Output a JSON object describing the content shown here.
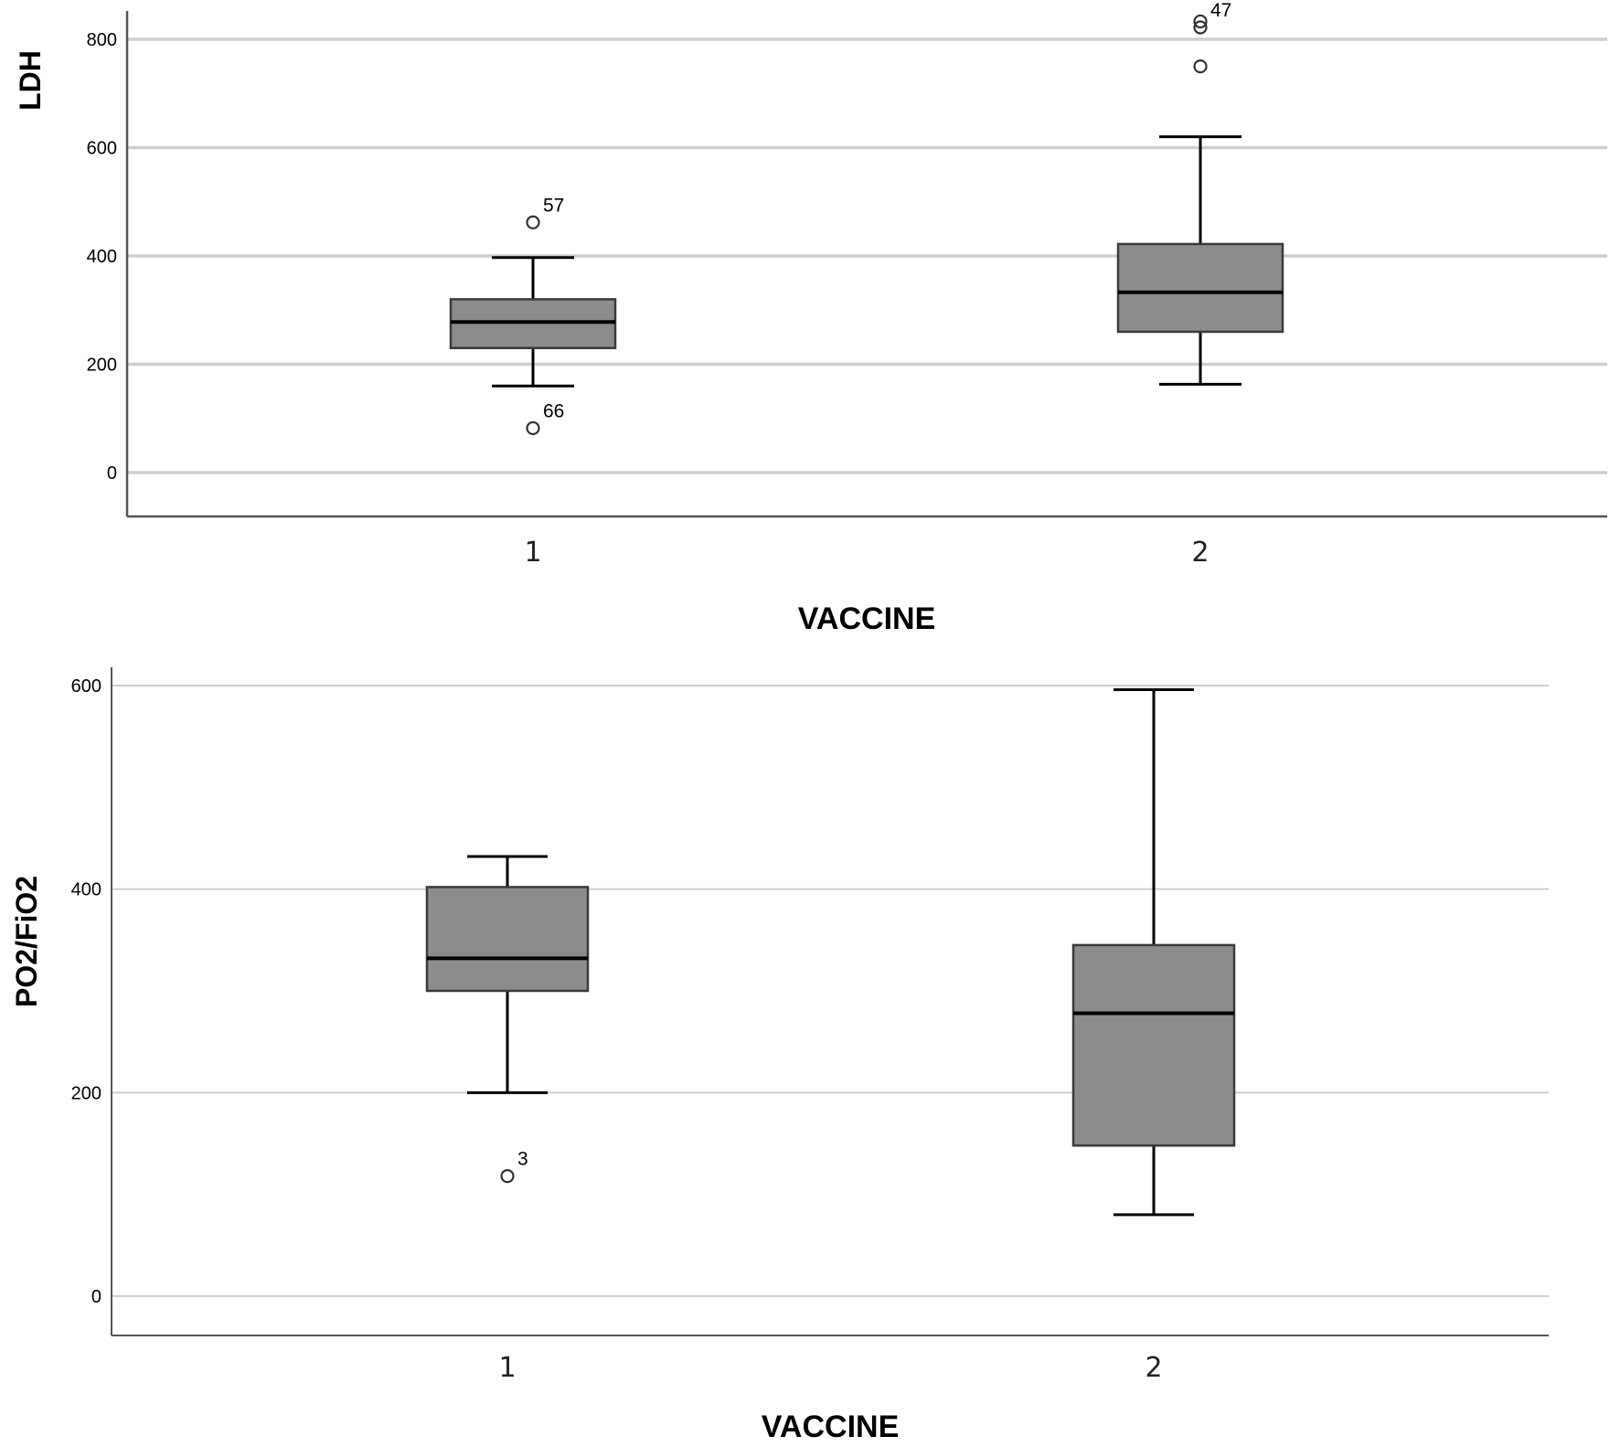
{
  "chart_data": [
    {
      "type": "boxplot",
      "xlabel": "VACCINE",
      "ylabel": "LDH",
      "ylim": [
        -80,
        850
      ],
      "yticks": [
        0,
        200,
        400,
        600,
        800
      ],
      "grid": true,
      "box_color": "#8c8c8c",
      "categories": [
        "1",
        "2"
      ],
      "boxes": [
        {
          "category": "1",
          "whisker_low": 160,
          "q1": 230,
          "median": 278,
          "q3": 320,
          "whisker_high": 397,
          "outliers": [
            {
              "value": 462,
              "label": "57"
            },
            {
              "value": 82,
              "label": "66"
            }
          ]
        },
        {
          "category": "2",
          "whisker_low": 163,
          "q1": 260,
          "median": 333,
          "q3": 422,
          "whisker_high": 620,
          "outliers": [
            {
              "value": 833,
              "label": ""
            },
            {
              "value": 822,
              "label": "47"
            },
            {
              "value": 750,
              "label": ""
            }
          ]
        }
      ]
    },
    {
      "type": "boxplot",
      "xlabel": "VACCINE",
      "ylabel": "PO2/FiO2",
      "ylim": [
        -38,
        600
      ],
      "yticks": [
        0,
        200,
        400,
        600
      ],
      "grid": true,
      "box_color": "#8c8c8c",
      "categories": [
        "1",
        "2"
      ],
      "boxes": [
        {
          "category": "1",
          "whisker_low": 200,
          "q1": 300,
          "median": 332,
          "q3": 402,
          "whisker_high": 432,
          "outliers": [
            {
              "value": 118,
              "label": "3"
            }
          ]
        },
        {
          "category": "2",
          "whisker_low": 80,
          "q1": 148,
          "median": 278,
          "q3": 345,
          "whisker_high": 596,
          "outliers": []
        }
      ]
    }
  ]
}
